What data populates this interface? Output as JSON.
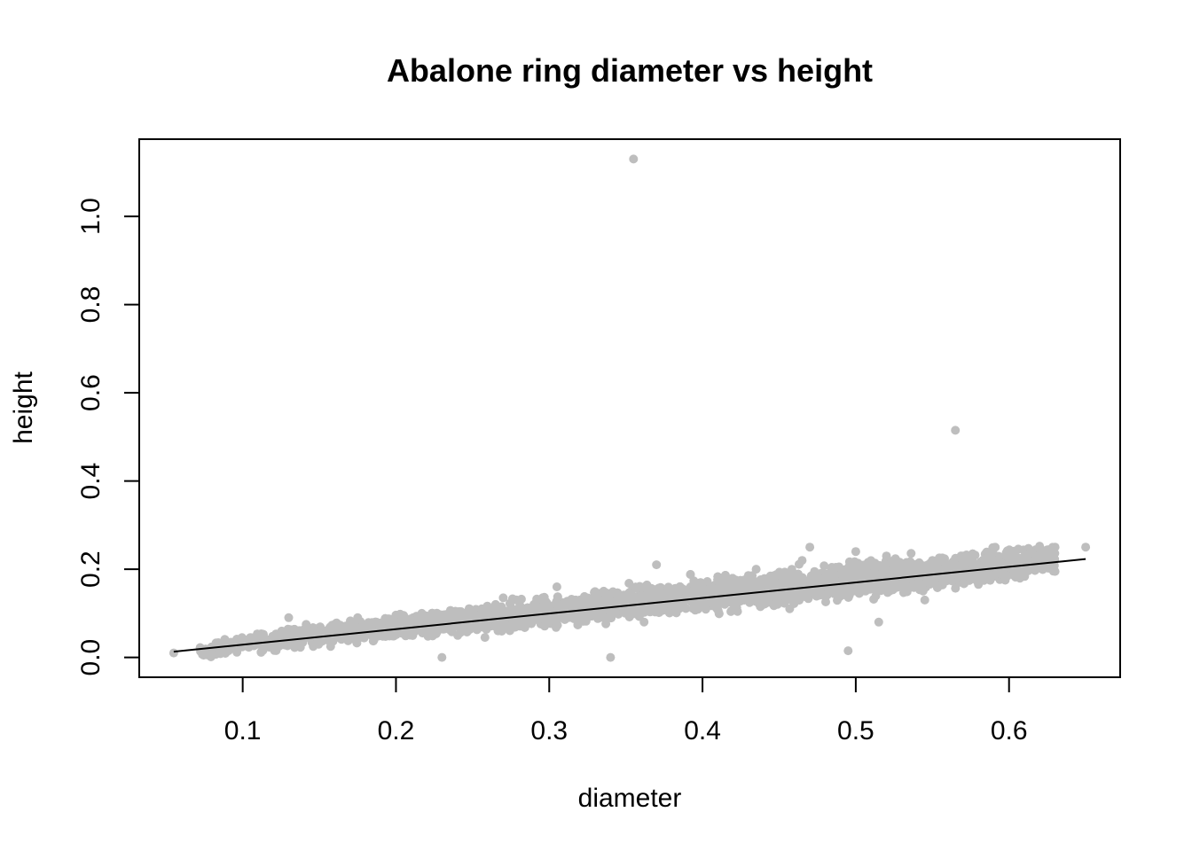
{
  "chart_data": {
    "type": "scatter",
    "title": "Abalone ring diameter vs height",
    "xlabel": "diameter",
    "ylabel": "height",
    "xlim": [
      0.0325,
      0.6725
    ],
    "ylim": [
      -0.045,
      1.175
    ],
    "x_ticks": [
      0.1,
      0.2,
      0.3,
      0.4,
      0.5,
      0.6
    ],
    "x_tick_labels": [
      "0.1",
      "0.2",
      "0.3",
      "0.4",
      "0.5",
      "0.6"
    ],
    "y_ticks": [
      0.0,
      0.2,
      0.4,
      0.6,
      0.8,
      1.0
    ],
    "y_tick_labels": [
      "0.0",
      "0.2",
      "0.4",
      "0.6",
      "0.8",
      "1.0"
    ],
    "grid": false,
    "point_color": "#BEBEBE",
    "line_color": "#000000",
    "points": [
      [
        0.055,
        0.01
      ],
      [
        0.09,
        0.03
      ],
      [
        0.1,
        0.035
      ],
      [
        0.105,
        0.045
      ],
      [
        0.11,
        0.03
      ],
      [
        0.12,
        0.025
      ],
      [
        0.125,
        0.055
      ],
      [
        0.13,
        0.09
      ],
      [
        0.135,
        0.05
      ],
      [
        0.14,
        0.06
      ],
      [
        0.15,
        0.045
      ],
      [
        0.155,
        0.06
      ],
      [
        0.165,
        0.055
      ],
      [
        0.175,
        0.09
      ],
      [
        0.18,
        0.06
      ],
      [
        0.19,
        0.07
      ],
      [
        0.2,
        0.065
      ],
      [
        0.205,
        0.095
      ],
      [
        0.215,
        0.085
      ],
      [
        0.22,
        0.07
      ],
      [
        0.23,
        0.0
      ],
      [
        0.235,
        0.085
      ],
      [
        0.245,
        0.1
      ],
      [
        0.255,
        0.08
      ],
      [
        0.265,
        0.12
      ],
      [
        0.27,
        0.135
      ],
      [
        0.28,
        0.095
      ],
      [
        0.29,
        0.12
      ],
      [
        0.3,
        0.105
      ],
      [
        0.305,
        0.16
      ],
      [
        0.31,
        0.09
      ],
      [
        0.32,
        0.11
      ],
      [
        0.33,
        0.12
      ],
      [
        0.34,
        0.0
      ],
      [
        0.345,
        0.135
      ],
      [
        0.355,
        1.13
      ],
      [
        0.36,
        0.14
      ],
      [
        0.37,
        0.21
      ],
      [
        0.375,
        0.12
      ],
      [
        0.385,
        0.15
      ],
      [
        0.395,
        0.16
      ],
      [
        0.405,
        0.13
      ],
      [
        0.415,
        0.175
      ],
      [
        0.425,
        0.16
      ],
      [
        0.435,
        0.2
      ],
      [
        0.445,
        0.15
      ],
      [
        0.455,
        0.18
      ],
      [
        0.465,
        0.22
      ],
      [
        0.47,
        0.25
      ],
      [
        0.48,
        0.17
      ],
      [
        0.485,
        0.19
      ],
      [
        0.495,
        0.015
      ],
      [
        0.5,
        0.24
      ],
      [
        0.505,
        0.2
      ],
      [
        0.51,
        0.16
      ],
      [
        0.515,
        0.08
      ],
      [
        0.52,
        0.23
      ],
      [
        0.53,
        0.21
      ],
      [
        0.535,
        0.18
      ],
      [
        0.545,
        0.13
      ],
      [
        0.55,
        0.22
      ],
      [
        0.56,
        0.2
      ],
      [
        0.565,
        0.515
      ],
      [
        0.57,
        0.23
      ],
      [
        0.58,
        0.17
      ],
      [
        0.59,
        0.22
      ],
      [
        0.6,
        0.225
      ],
      [
        0.61,
        0.2
      ],
      [
        0.62,
        0.21
      ],
      [
        0.63,
        0.25
      ],
      [
        0.63,
        0.195
      ],
      [
        0.65,
        0.25
      ]
    ],
    "cloud_band": [
      [
        0.07,
        0.015,
        0.012
      ],
      [
        0.1,
        0.03,
        0.016
      ],
      [
        0.15,
        0.05,
        0.018
      ],
      [
        0.2,
        0.068,
        0.02
      ],
      [
        0.25,
        0.085,
        0.022
      ],
      [
        0.3,
        0.103,
        0.024
      ],
      [
        0.35,
        0.122,
        0.026
      ],
      [
        0.4,
        0.14,
        0.028
      ],
      [
        0.45,
        0.158,
        0.03
      ],
      [
        0.5,
        0.176,
        0.031
      ],
      [
        0.55,
        0.195,
        0.03
      ],
      [
        0.6,
        0.212,
        0.026
      ],
      [
        0.63,
        0.22,
        0.02
      ]
    ],
    "regression_line": {
      "x": [
        0.055,
        0.65
      ],
      "y": [
        0.013,
        0.223
      ]
    }
  }
}
